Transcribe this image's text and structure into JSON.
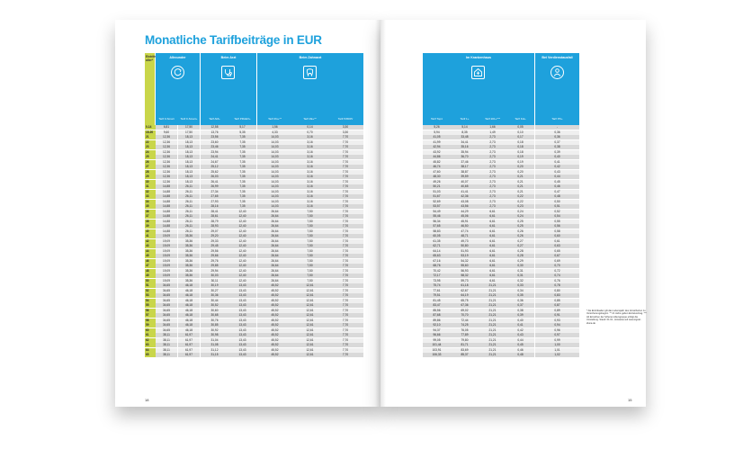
{
  "title": "Monatliche Tarifbeiträge in EUR",
  "page_left": "18",
  "page_right": "15",
  "age_header": "Eintritts-\nalter*",
  "groups_left": [
    {
      "label": "Allrounder",
      "icon": "refresh-icon",
      "cols": [
        "Tarif 0-Smart",
        "Tarif 0-Smart+"
      ]
    },
    {
      "label": "Beim Arzt",
      "icon": "stethoscope-icon",
      "cols": [
        "Tarif AM+",
        "Tarif PRAEV+"
      ]
    },
    {
      "label": "Beim Zahnarzt",
      "icon": "tooth-icon",
      "cols": [
        "Tarif ZG+**",
        "Tarif ZE+**",
        "Tarif PZDRV"
      ]
    }
  ],
  "groups_right": [
    {
      "label": "Im Krankenhaus",
      "icon": "hospital-icon",
      "cols": [
        "Tarif Top1",
        "Tarif 1+",
        "Tarif 201+***",
        "Tarif KH+"
      ]
    },
    {
      "label": "Bei Verdienstausfall",
      "icon": "person-icon",
      "cols": [
        "Tarif PK+"
      ]
    }
  ],
  "rows": [
    [
      "0-14",
      "6,81",
      "17,50",
      "12,58",
      "5,17",
      "1,56",
      "0,14",
      "3,30",
      "5,26",
      "5,14",
      "1,66",
      "0,05",
      "-"
    ],
    [
      "15-20",
      "9,60",
      "17,50",
      "13,76",
      "5,35",
      "4,33",
      "0,70",
      "3,30",
      "5,94",
      "8,35",
      "1,49",
      "0,10",
      "0,36"
    ],
    [
      "21",
      "12,36",
      "18,13",
      "23,56",
      "7,35",
      "14,03",
      "3,16",
      "7,70",
      "41,05",
      "33,48",
      "2,73",
      "0,17",
      "0,36"
    ],
    [
      "22",
      "12,36",
      "18,13",
      "23,60",
      "7,35",
      "14,03",
      "3,16",
      "7,70",
      "41,99",
      "34,41",
      "2,73",
      "0,18",
      "0,37"
    ],
    [
      "23",
      "12,36",
      "18,13",
      "23,46",
      "7,35",
      "14,03",
      "3,16",
      "7,70",
      "42,94",
      "35,16",
      "2,73",
      "0,18",
      "0,38"
    ],
    [
      "24",
      "12,36",
      "18,13",
      "23,94",
      "7,35",
      "14,03",
      "3,16",
      "7,70",
      "43,92",
      "35,94",
      "2,73",
      "0,18",
      "0,39"
    ],
    [
      "25",
      "12,36",
      "18,13",
      "24,41",
      "7,35",
      "14,03",
      "3,16",
      "7,70",
      "44,86",
      "36,70",
      "2,73",
      "0,19",
      "0,40"
    ],
    [
      "26",
      "12,36",
      "18,13",
      "24,67",
      "7,35",
      "14,03",
      "3,16",
      "7,70",
      "45,82",
      "37,46",
      "2,73",
      "0,19",
      "0,41"
    ],
    [
      "27",
      "12,36",
      "18,13",
      "25,12",
      "7,35",
      "14,03",
      "3,16",
      "7,70",
      "46,74",
      "38,17",
      "2,73",
      "0,20",
      "0,42"
    ],
    [
      "28",
      "12,36",
      "18,13",
      "25,62",
      "7,35",
      "14,03",
      "3,16",
      "7,70",
      "47,60",
      "38,87",
      "2,73",
      "0,20",
      "0,43"
    ],
    [
      "29",
      "12,36",
      "18,13",
      "26,03",
      "7,35",
      "14,03",
      "3,16",
      "7,70",
      "48,30",
      "39,59",
      "2,73",
      "0,21",
      "0,44"
    ],
    [
      "30",
      "12,36",
      "18,13",
      "26,41",
      "7,35",
      "14,03",
      "3,16",
      "7,70",
      "49,26",
      "40,07",
      "2,73",
      "0,21",
      "0,45"
    ],
    [
      "31",
      "14,88",
      "26,11",
      "26,99",
      "7,35",
      "14,03",
      "3,16",
      "7,70",
      "50,21",
      "40,65",
      "2,73",
      "0,21",
      "0,46"
    ],
    [
      "32",
      "14,88",
      "26,11",
      "27,34",
      "7,35",
      "14,03",
      "3,16",
      "7,70",
      "51,03",
      "41,41",
      "2,73",
      "0,21",
      "0,47"
    ],
    [
      "33",
      "14,88",
      "26,11",
      "27,65",
      "7,35",
      "14,03",
      "3,16",
      "7,70",
      "51,67",
      "42,36",
      "2,73",
      "0,22",
      "0,48"
    ],
    [
      "34",
      "14,88",
      "26,11",
      "27,93",
      "7,35",
      "14,03",
      "3,16",
      "7,70",
      "52,69",
      "43,08",
      "2,73",
      "0,22",
      "0,50"
    ],
    [
      "35",
      "14,88",
      "26,11",
      "28,16",
      "7,35",
      "14,03",
      "3,16",
      "7,70",
      "53,57",
      "43,56",
      "2,73",
      "0,23",
      "0,51"
    ],
    [
      "36",
      "14,88",
      "26,11",
      "28,41",
      "12,40",
      "26,64",
      "7,50",
      "7,70",
      "54,49",
      "44,29",
      "6,61",
      "0,24",
      "0,52"
    ],
    [
      "37",
      "14,88",
      "26,11",
      "28,61",
      "12,40",
      "26,64",
      "7,50",
      "7,70",
      "55,46",
      "45,06",
      "6,61",
      "0,24",
      "0,54"
    ],
    [
      "38",
      "14,88",
      "26,11",
      "28,79",
      "12,40",
      "26,64",
      "7,50",
      "7,70",
      "56,34",
      "45,91",
      "6,61",
      "0,25",
      "0,55"
    ],
    [
      "39",
      "14,88",
      "26,11",
      "28,93",
      "12,40",
      "26,64",
      "7,50",
      "7,70",
      "57,65",
      "46,50",
      "6,61",
      "0,25",
      "0,56"
    ],
    [
      "40",
      "14,88",
      "26,11",
      "29,07",
      "12,40",
      "26,64",
      "7,50",
      "7,70",
      "58,83",
      "47,74",
      "6,61",
      "0,26",
      "0,58"
    ],
    [
      "41",
      "19,09",
      "35,36",
      "29,20",
      "12,40",
      "26,64",
      "7,50",
      "7,70",
      "60,05",
      "48,71",
      "6,61",
      "0,26",
      "0,60"
    ],
    [
      "42",
      "19,09",
      "35,36",
      "29,33",
      "12,40",
      "26,64",
      "7,50",
      "7,70",
      "61,35",
      "49,73",
      "6,61",
      "0,27",
      "0,61"
    ],
    [
      "43",
      "19,09",
      "35,36",
      "29,45",
      "12,40",
      "26,64",
      "7,50",
      "7,70",
      "62,71",
      "50,80",
      "6,61",
      "0,27",
      "0,63"
    ],
    [
      "44",
      "19,09",
      "35,36",
      "29,56",
      "12,40",
      "26,64",
      "7,50",
      "7,70",
      "64,14",
      "51,93",
      "6,61",
      "0,28",
      "0,65"
    ],
    [
      "45",
      "19,09",
      "35,36",
      "29,66",
      "12,40",
      "26,64",
      "7,50",
      "7,70",
      "65,63",
      "53,19",
      "6,61",
      "0,28",
      "0,67"
    ],
    [
      "46",
      "19,09",
      "35,36",
      "29,76",
      "12,40",
      "26,64",
      "7,50",
      "7,70",
      "67,16",
      "54,32",
      "6,61",
      "0,29",
      "0,69"
    ],
    [
      "47",
      "19,09",
      "35,36",
      "29,85",
      "12,40",
      "26,64",
      "7,50",
      "7,70",
      "68,76",
      "55,60",
      "6,61",
      "0,30",
      "0,70"
    ],
    [
      "48",
      "19,09",
      "35,36",
      "29,94",
      "12,40",
      "26,64",
      "7,50",
      "7,70",
      "70,42",
      "56,93",
      "6,61",
      "0,31",
      "0,72"
    ],
    [
      "49",
      "19,09",
      "35,36",
      "30,03",
      "12,40",
      "26,64",
      "7,50",
      "7,70",
      "72,17",
      "58,32",
      "6,61",
      "0,31",
      "0,74"
    ],
    [
      "50",
      "19,09",
      "35,36",
      "30,11",
      "12,40",
      "26,64",
      "7,50",
      "7,70",
      "73,95",
      "59,73",
      "6,61",
      "0,32",
      "0,76"
    ],
    [
      "51",
      "34,65",
      "46,18",
      "30,19",
      "13,43",
      "45,52",
      "12,61",
      "7,70",
      "75,74",
      "61,18",
      "21,21",
      "0,33",
      "0,78"
    ],
    [
      "52",
      "34,65",
      "46,18",
      "30,27",
      "13,43",
      "45,52",
      "12,61",
      "7,70",
      "77,61",
      "62,67",
      "21,21",
      "0,34",
      "0,80"
    ],
    [
      "53",
      "34,65",
      "46,18",
      "30,36",
      "13,43",
      "45,52",
      "12,61",
      "7,70",
      "79,51",
      "64,19",
      "21,21",
      "0,35",
      "0,83"
    ],
    [
      "54",
      "34,65",
      "46,18",
      "30,44",
      "13,43",
      "45,52",
      "12,61",
      "7,70",
      "81,45",
      "65,75",
      "21,21",
      "0,36",
      "0,85"
    ],
    [
      "55",
      "34,65",
      "46,18",
      "30,52",
      "13,43",
      "45,52",
      "12,61",
      "7,70",
      "83,47",
      "67,36",
      "21,21",
      "0,37",
      "0,87"
    ],
    [
      "56",
      "34,65",
      "46,18",
      "30,60",
      "13,43",
      "45,52",
      "12,61",
      "7,70",
      "85,56",
      "69,02",
      "21,21",
      "0,38",
      "0,89"
    ],
    [
      "57",
      "34,65",
      "46,18",
      "30,68",
      "13,43",
      "45,52",
      "12,61",
      "7,70",
      "87,68",
      "70,70",
      "21,21",
      "0,39",
      "0,91"
    ],
    [
      "58",
      "34,65",
      "46,18",
      "30,76",
      "13,43",
      "45,52",
      "12,61",
      "7,70",
      "89,86",
      "72,44",
      "21,21",
      "0,40",
      "0,93"
    ],
    [
      "59",
      "34,65",
      "46,18",
      "30,85",
      "13,43",
      "45,52",
      "12,61",
      "7,70",
      "92,10",
      "74,25",
      "21,21",
      "0,41",
      "0,94"
    ],
    [
      "60",
      "34,65",
      "46,18",
      "30,92",
      "13,43",
      "45,52",
      "12,61",
      "7,70",
      "94,37",
      "76,05",
      "21,21",
      "0,42",
      "0,96"
    ],
    [
      "61",
      "38,11",
      "61,97",
      "30,98",
      "13,43",
      "45,52",
      "12,61",
      "7,70",
      "96,66",
      "77,89",
      "21,21",
      "0,43",
      "0,97"
    ],
    [
      "62",
      "38,11",
      "61,97",
      "31,04",
      "13,43",
      "45,52",
      "12,61",
      "7,70",
      "99,05",
      "79,80",
      "21,21",
      "0,44",
      "0,99"
    ],
    [
      "63",
      "38,11",
      "61,97",
      "31,08",
      "13,43",
      "45,52",
      "12,61",
      "7,70",
      "101,44",
      "81,71",
      "21,21",
      "0,45",
      "1,00"
    ],
    [
      "64",
      "38,11",
      "61,97",
      "31,12",
      "13,43",
      "45,52",
      "12,61",
      "7,70",
      "103,91",
      "83,69",
      "21,21",
      "0,46",
      "1,01"
    ],
    [
      "65",
      "38,11",
      "61,97",
      "31,15",
      "13,43",
      "45,52",
      "12,61",
      "7,70",
      "106,33",
      "85,37",
      "21,21",
      "0,48",
      "1,02"
    ]
  ],
  "notes": "*   Als Eintrittsalter gilt das Lebensjahr des Versicherten zu Versicherungsbeginn. ** 21 Jahre gelten Einzelvertrag. *** Ab Erreichen der höheren Altersgruppe erfolgt die Umstellung. Stand: 01.01.; Hinweise auf www.signal-iduna.de"
}
